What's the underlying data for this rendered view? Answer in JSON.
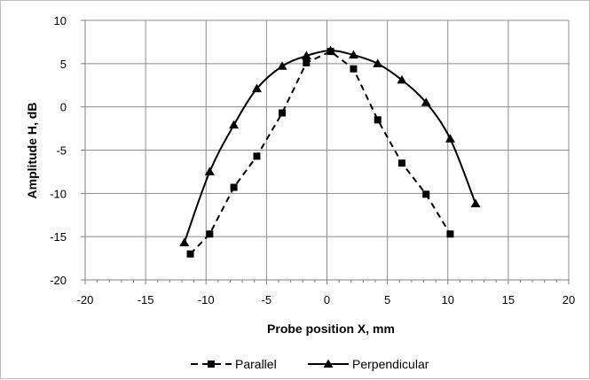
{
  "chart_data": {
    "type": "line",
    "title": "",
    "xlabel": "Probe position X, mm",
    "ylabel": "Amplitude H, dB",
    "xlim": [
      -20,
      20
    ],
    "ylim": [
      -20,
      10
    ],
    "xticks": [
      -20,
      -15,
      -10,
      -5,
      0,
      5,
      10,
      15,
      20
    ],
    "yticks": [
      -20,
      -15,
      -10,
      -5,
      0,
      5,
      10
    ],
    "x_minor_step": 1,
    "grid": true,
    "legend_position": "bottom",
    "series": [
      {
        "name": "Parallel",
        "marker": "square",
        "line_style": "dashed",
        "smooth": false,
        "color": "#000000",
        "points": [
          [
            -11.3,
            -17.0
          ],
          [
            -9.7,
            -14.7
          ],
          [
            -7.7,
            -9.3
          ],
          [
            -5.8,
            -5.7
          ],
          [
            -3.7,
            -0.7
          ],
          [
            -1.7,
            5.1
          ],
          [
            0.3,
            6.4
          ],
          [
            2.2,
            4.4
          ],
          [
            4.2,
            -1.5
          ],
          [
            6.2,
            -6.5
          ],
          [
            8.2,
            -10.1
          ],
          [
            10.2,
            -14.7
          ]
        ]
      },
      {
        "name": "Perpendicular",
        "marker": "triangle",
        "line_style": "solid",
        "smooth": true,
        "color": "#000000",
        "points": [
          [
            -11.8,
            -15.7
          ],
          [
            -9.7,
            -7.5
          ],
          [
            -7.7,
            -2.1
          ],
          [
            -5.8,
            2.1
          ],
          [
            -3.7,
            4.7
          ],
          [
            -1.7,
            5.9
          ],
          [
            0.3,
            6.5
          ],
          [
            2.2,
            6.0
          ],
          [
            4.2,
            5.0
          ],
          [
            6.2,
            3.1
          ],
          [
            8.2,
            0.5
          ],
          [
            10.2,
            -3.7
          ],
          [
            12.3,
            -11.2
          ]
        ]
      }
    ]
  }
}
